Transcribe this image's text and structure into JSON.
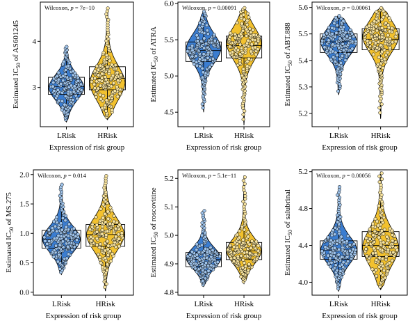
{
  "colors": {
    "LRisk": "#3b7dd0",
    "HRisk": "#f2c12e",
    "dot_LRisk": "#9fc3ea",
    "dot_HRisk": "#f8e4a0"
  },
  "chart_data": [
    {
      "type": "violin",
      "stat_label": "Wilcoxon, p = 7e−10",
      "ylabel": "Estimated IC50 of AS601245",
      "ylabel_drug": "AS601245",
      "xlabel": "Expression of risk group",
      "categories": [
        "LRisk",
        "HRisk"
      ],
      "ylim": [
        2.15,
        4.85
      ],
      "yticks": [
        3,
        4
      ],
      "series": [
        {
          "name": "LRisk",
          "min": 2.25,
          "q1": 2.85,
          "median": 3.02,
          "q3": 3.22,
          "max": 3.9,
          "mode": 3.0,
          "n": 170
        },
        {
          "name": "HRisk",
          "min": 2.3,
          "q1": 2.95,
          "median": 3.2,
          "q3": 3.45,
          "max": 4.75,
          "mode": 3.1,
          "n": 170
        }
      ]
    },
    {
      "type": "violin",
      "stat_label": "Wilcoxon, p = 0.00091",
      "ylabel": "Estimated IC50 of ATRA",
      "ylabel_drug": "ATRA",
      "xlabel": "Expression of risk group",
      "categories": [
        "LRisk",
        "HRisk"
      ],
      "ylim": [
        4.3,
        6.02
      ],
      "yticks": [
        4.5,
        5.0,
        5.5,
        6.0
      ],
      "series": [
        {
          "name": "LRisk",
          "min": 4.5,
          "q1": 5.2,
          "median": 5.35,
          "q3": 5.47,
          "max": 5.9,
          "mode": 5.38,
          "n": 170
        },
        {
          "name": "HRisk",
          "min": 4.32,
          "q1": 5.25,
          "median": 5.42,
          "q3": 5.55,
          "max": 5.95,
          "mode": 5.45,
          "n": 170
        }
      ]
    },
    {
      "type": "violin",
      "stat_label": "Wilcoxon, p = 0.00061",
      "ylabel": "Estimated IC50 of ABT.888",
      "ylabel_drug": "ABT.888",
      "xlabel": "Expression of risk group",
      "categories": [
        "LRisk",
        "HRisk"
      ],
      "ylim": [
        5.15,
        5.62
      ],
      "yticks": [
        5.2,
        5.3,
        5.4,
        5.5,
        5.6
      ],
      "series": [
        {
          "name": "LRisk",
          "min": 5.27,
          "q1": 5.43,
          "median": 5.47,
          "q3": 5.5,
          "max": 5.57,
          "mode": 5.47,
          "n": 170
        },
        {
          "name": "HRisk",
          "min": 5.18,
          "q1": 5.44,
          "median": 5.48,
          "q3": 5.52,
          "max": 5.6,
          "mode": 5.49,
          "n": 170
        }
      ]
    },
    {
      "type": "violin",
      "stat_label": "Wilcoxon, p = 0.014",
      "ylabel": "Estimated IC50 of MS.275",
      "ylabel_drug": "MS.275",
      "xlabel": "Expression of risk group",
      "categories": [
        "LRisk",
        "HRisk"
      ],
      "ylim": [
        -0.05,
        2.08
      ],
      "yticks": [
        0.0,
        0.5,
        1.0,
        1.5,
        2.0
      ],
      "series": [
        {
          "name": "LRisk",
          "min": 0.3,
          "q1": 0.75,
          "median": 0.9,
          "q3": 1.05,
          "max": 1.85,
          "mode": 0.9,
          "n": 170
        },
        {
          "name": "HRisk",
          "min": 0.02,
          "q1": 0.78,
          "median": 0.98,
          "q3": 1.15,
          "max": 2.0,
          "mode": 0.98,
          "n": 170
        }
      ]
    },
    {
      "type": "violin",
      "stat_label": "Wilcoxon, p = 5.1e−11",
      "ylabel": "Estimated IC50 of roscovitine",
      "ylabel_drug": "roscovitine",
      "xlabel": "Expression of risk group",
      "categories": [
        "LRisk",
        "HRisk"
      ],
      "ylim": [
        4.79,
        5.23
      ],
      "yticks": [
        4.8,
        4.9,
        5.0,
        5.1,
        5.2
      ],
      "series": [
        {
          "name": "LRisk",
          "min": 4.82,
          "q1": 4.89,
          "median": 4.915,
          "q3": 4.94,
          "max": 5.09,
          "mode": 4.92,
          "n": 170
        },
        {
          "name": "HRisk",
          "min": 4.83,
          "q1": 4.915,
          "median": 4.945,
          "q3": 4.975,
          "max": 5.21,
          "mode": 4.945,
          "n": 170
        }
      ]
    },
    {
      "type": "violin",
      "stat_label": "Wilcoxon, p = 0.00056",
      "ylabel": "Estimated IC50 of salubrinal",
      "ylabel_drug": "salubrinal",
      "xlabel": "Expression of risk group",
      "categories": [
        "LRisk",
        "HRisk"
      ],
      "ylim": [
        3.86,
        5.22
      ],
      "yticks": [
        4.0,
        4.4,
        4.8,
        5.2
      ],
      "series": [
        {
          "name": "LRisk",
          "min": 3.9,
          "q1": 4.25,
          "median": 4.35,
          "q3": 4.45,
          "max": 5.05,
          "mode": 4.35,
          "n": 170
        },
        {
          "name": "HRisk",
          "min": 3.92,
          "q1": 4.28,
          "median": 4.4,
          "q3": 4.55,
          "max": 5.2,
          "mode": 4.38,
          "n": 170
        }
      ]
    }
  ]
}
